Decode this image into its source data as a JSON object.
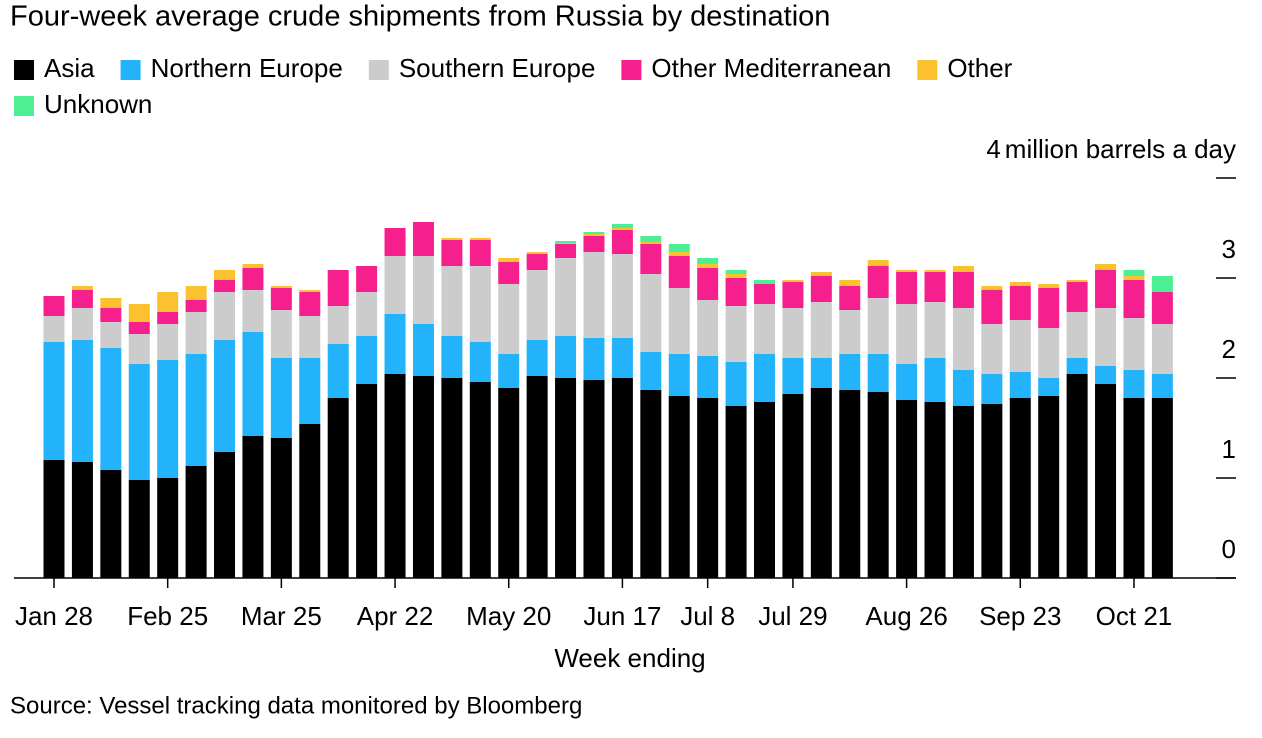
{
  "chart_data": {
    "type": "stacked_bar",
    "title": "Four-week average crude shipments from Russia by destination",
    "y_label": "million barrels a day",
    "x_label": "Week ending",
    "source": "Source: Vessel tracking data monitored by Bloomberg",
    "categories": [
      "Jan 28",
      null,
      null,
      null,
      "Feb 25",
      null,
      null,
      null,
      "Mar 25",
      null,
      null,
      null,
      "Apr 22",
      null,
      null,
      null,
      "May 20",
      null,
      null,
      null,
      "Jun 17",
      null,
      null,
      "Jul 8",
      null,
      null,
      "Jul 29",
      null,
      null,
      null,
      "Aug 26",
      null,
      null,
      null,
      "Sep 23",
      null,
      null,
      null,
      "Oct 21",
      null
    ],
    "ylim": [
      0,
      4
    ],
    "yticks": [
      0,
      1,
      2,
      3,
      4
    ],
    "series": [
      {
        "name": "Asia",
        "color": "#000000",
        "values": [
          1.18,
          1.16,
          1.08,
          0.98,
          1.0,
          1.12,
          1.26,
          1.42,
          1.4,
          1.54,
          1.8,
          1.94,
          2.04,
          2.02,
          2.0,
          1.96,
          1.9,
          2.02,
          2.0,
          1.98,
          2.0,
          1.88,
          1.82,
          1.8,
          1.72,
          1.76,
          1.84,
          1.9,
          1.88,
          1.86,
          1.78,
          1.76,
          1.72,
          1.74,
          1.8,
          1.82,
          2.04,
          1.94,
          1.8,
          1.8
        ]
      },
      {
        "name": "Northern Europe",
        "color": "#22b3fa",
        "values": [
          1.18,
          1.22,
          1.22,
          1.16,
          1.18,
          1.12,
          1.12,
          1.04,
          0.8,
          0.66,
          0.54,
          0.48,
          0.6,
          0.52,
          0.42,
          0.4,
          0.34,
          0.36,
          0.42,
          0.42,
          0.4,
          0.38,
          0.42,
          0.42,
          0.44,
          0.48,
          0.36,
          0.3,
          0.36,
          0.38,
          0.36,
          0.44,
          0.36,
          0.3,
          0.26,
          0.18,
          0.16,
          0.18,
          0.28,
          0.24
        ]
      },
      {
        "name": "Southern Europe",
        "color": "#cccccc",
        "values": [
          0.26,
          0.32,
          0.26,
          0.3,
          0.36,
          0.42,
          0.48,
          0.42,
          0.48,
          0.42,
          0.38,
          0.44,
          0.58,
          0.68,
          0.7,
          0.76,
          0.7,
          0.7,
          0.78,
          0.86,
          0.84,
          0.78,
          0.66,
          0.56,
          0.56,
          0.5,
          0.5,
          0.56,
          0.44,
          0.56,
          0.6,
          0.56,
          0.62,
          0.5,
          0.52,
          0.5,
          0.46,
          0.58,
          0.52,
          0.5
        ]
      },
      {
        "name": "Other Mediterranean",
        "color": "#f5208e",
        "values": [
          0.2,
          0.18,
          0.14,
          0.12,
          0.12,
          0.12,
          0.12,
          0.22,
          0.22,
          0.24,
          0.36,
          0.26,
          0.28,
          0.34,
          0.26,
          0.26,
          0.22,
          0.16,
          0.14,
          0.16,
          0.24,
          0.3,
          0.32,
          0.32,
          0.28,
          0.2,
          0.26,
          0.26,
          0.24,
          0.32,
          0.32,
          0.3,
          0.36,
          0.34,
          0.34,
          0.4,
          0.3,
          0.38,
          0.38,
          0.32
        ]
      },
      {
        "name": "Other",
        "color": "#fcc12e",
        "values": [
          0,
          0.04,
          0.1,
          0.18,
          0.2,
          0.14,
          0.1,
          0.04,
          0.02,
          0.02,
          0,
          0,
          0,
          0,
          0.02,
          0.02,
          0.04,
          0.02,
          0.01,
          0.02,
          0.02,
          0.02,
          0.04,
          0.04,
          0.04,
          0,
          0.02,
          0.04,
          0.06,
          0.06,
          0.02,
          0.02,
          0.06,
          0.04,
          0.04,
          0.04,
          0.02,
          0.06,
          0.04,
          0
        ]
      },
      {
        "name": "Unknown",
        "color": "#4cef94",
        "values": [
          0,
          0,
          0,
          0,
          0,
          0,
          0,
          0,
          0,
          0,
          0,
          0,
          0,
          0,
          0,
          0,
          0,
          0,
          0.02,
          0.02,
          0.04,
          0.06,
          0.08,
          0.06,
          0.04,
          0.04,
          0,
          0,
          0,
          0,
          0,
          0,
          0,
          0,
          0,
          0,
          0,
          0,
          0.06,
          0.16
        ]
      }
    ]
  }
}
